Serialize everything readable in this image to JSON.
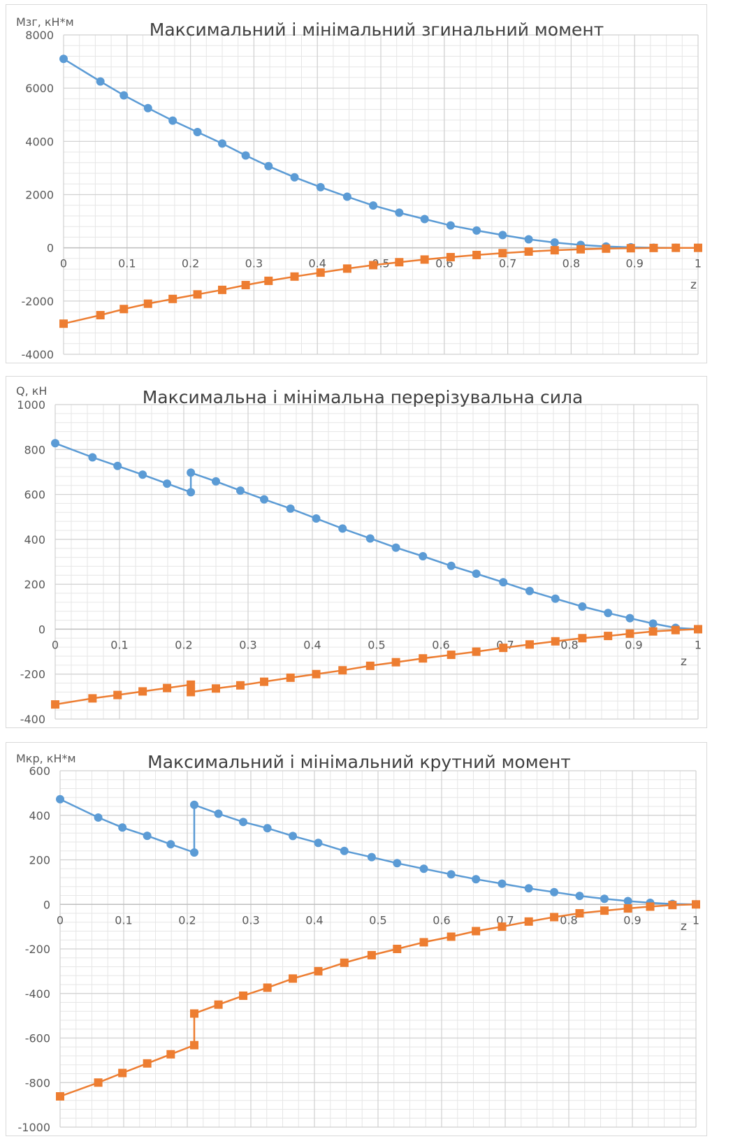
{
  "colors": {
    "max_series": "#5b9bd5",
    "min_series": "#ed7d31",
    "grid_major": "#d0d0d0",
    "grid_minor": "#e6e6e6",
    "axis_text": "#595959",
    "title_text": "#404040"
  },
  "chart_data": [
    {
      "type": "line",
      "title": "Максимальний і мінімальний згинальний момент",
      "ylabel": "Мзг, кН*м",
      "xlabel": "z",
      "xlim": [
        0,
        1
      ],
      "ylim": [
        -4000,
        8000
      ],
      "yticks": [
        "8000",
        "6000",
        "4000",
        "2000",
        "0",
        "-2000",
        "-4000"
      ],
      "ytick_values": [
        8000,
        6000,
        4000,
        2000,
        0,
        -2000,
        -4000
      ],
      "xticks": [
        "0",
        "0.1",
        "0.2",
        "0.3",
        "0.4",
        "0.5",
        "0.6",
        "0.7",
        "0.8",
        "0.9",
        "1"
      ],
      "xtick_values": [
        0,
        0.1,
        0.2,
        0.3,
        0.4,
        0.5,
        0.6,
        0.7,
        0.8,
        0.9,
        1
      ],
      "series": [
        {
          "marker": "circle",
          "x": [
            0,
            0.058,
            0.095,
            0.133,
            0.172,
            0.211,
            0.25,
            0.287,
            0.323,
            0.364,
            0.405,
            0.447,
            0.488,
            0.529,
            0.569,
            0.61,
            0.651,
            0.692,
            0.733,
            0.774,
            0.815,
            0.855,
            0.894,
            0.93,
            0.965,
            1
          ],
          "y": [
            7100,
            6250,
            5730,
            5250,
            4780,
            4350,
            3920,
            3470,
            3070,
            2650,
            2280,
            1920,
            1590,
            1320,
            1080,
            840,
            650,
            480,
            320,
            200,
            110,
            50,
            20,
            5,
            0,
            0
          ]
        },
        {
          "marker": "square",
          "x": [
            0,
            0.058,
            0.095,
            0.133,
            0.172,
            0.211,
            0.25,
            0.287,
            0.323,
            0.364,
            0.405,
            0.447,
            0.488,
            0.529,
            0.569,
            0.61,
            0.651,
            0.692,
            0.733,
            0.774,
            0.815,
            0.855,
            0.894,
            0.93,
            0.965,
            1
          ],
          "y": [
            -2850,
            -2530,
            -2300,
            -2100,
            -1920,
            -1750,
            -1580,
            -1400,
            -1240,
            -1080,
            -930,
            -780,
            -650,
            -540,
            -440,
            -350,
            -270,
            -200,
            -140,
            -90,
            -55,
            -30,
            -15,
            -5,
            0,
            0
          ]
        }
      ]
    },
    {
      "type": "line",
      "title": "Максимальна і мінімальна перерізувальна сила",
      "ylabel": "Q, кН",
      "xlabel": "z",
      "xlim": [
        0,
        1
      ],
      "ylim": [
        -400,
        1000
      ],
      "yticks": [
        "1000",
        "800",
        "600",
        "400",
        "200",
        "0",
        "-200",
        "-400"
      ],
      "ytick_values": [
        1000,
        800,
        600,
        400,
        200,
        0,
        -200,
        -400
      ],
      "xticks": [
        "0",
        "0.1",
        "0.2",
        "0.3",
        "0.4",
        "0.5",
        "0.6",
        "0.7",
        "0.8",
        "0.9",
        "1"
      ],
      "xtick_values": [
        0,
        0.1,
        0.2,
        0.3,
        0.4,
        0.5,
        0.6,
        0.7,
        0.8,
        0.9,
        1
      ],
      "series": [
        {
          "marker": "circle",
          "x": [
            0,
            0.058,
            0.097,
            0.136,
            0.174,
            0.211,
            0.211,
            0.25,
            0.288,
            0.325,
            0.366,
            0.406,
            0.447,
            0.49,
            0.53,
            0.572,
            0.616,
            0.655,
            0.697,
            0.738,
            0.778,
            0.82,
            0.86,
            0.894,
            0.93,
            0.965,
            1
          ],
          "y": [
            828,
            765,
            727,
            688,
            648,
            610,
            697,
            658,
            617,
            578,
            537,
            493,
            448,
            404,
            363,
            325,
            282,
            247,
            209,
            170,
            136,
            101,
            72,
            49,
            25,
            6,
            0
          ]
        },
        {
          "marker": "square",
          "x": [
            0,
            0.058,
            0.097,
            0.136,
            0.174,
            0.211,
            0.211,
            0.25,
            0.288,
            0.325,
            0.366,
            0.406,
            0.447,
            0.49,
            0.53,
            0.572,
            0.616,
            0.655,
            0.697,
            0.738,
            0.778,
            0.82,
            0.86,
            0.894,
            0.93,
            0.965,
            1
          ],
          "y": [
            -335,
            -308,
            -293,
            -277,
            -262,
            -247,
            -280,
            -264,
            -250,
            -234,
            -216,
            -200,
            -183,
            -163,
            -147,
            -130,
            -114,
            -100,
            -83,
            -68,
            -54,
            -40,
            -30,
            -20,
            -10,
            -4,
            0
          ]
        }
      ]
    },
    {
      "type": "line",
      "title": "Максимальний і мінімальний крутний момент",
      "ylabel": "Мкр, кН*м",
      "xlabel": "z",
      "xlim": [
        0,
        1
      ],
      "ylim": [
        -1000,
        600
      ],
      "yticks": [
        "600",
        "400",
        "200",
        "0",
        "-200",
        "-400",
        "-600",
        "-800",
        "-1000"
      ],
      "ytick_values": [
        600,
        400,
        200,
        0,
        -200,
        -400,
        -600,
        -800,
        -1000
      ],
      "xticks": [
        "0",
        "0.1",
        "0.2",
        "0.3",
        "0.4",
        "0.5",
        "0.6",
        "0.7",
        "0.8",
        "0.9",
        "1"
      ],
      "xtick_values": [
        0,
        0.1,
        0.2,
        0.3,
        0.4,
        0.5,
        0.6,
        0.7,
        0.8,
        0.9,
        1
      ],
      "series": [
        {
          "marker": "circle",
          "x": [
            0,
            0.06,
            0.098,
            0.137,
            0.174,
            0.211,
            0.211,
            0.249,
            0.288,
            0.326,
            0.366,
            0.406,
            0.447,
            0.49,
            0.53,
            0.572,
            0.615,
            0.654,
            0.695,
            0.737,
            0.777,
            0.817,
            0.856,
            0.893,
            0.928,
            0.963,
            1
          ],
          "y": [
            472,
            390,
            345,
            308,
            270,
            233,
            447,
            407,
            370,
            342,
            307,
            276,
            240,
            212,
            185,
            160,
            135,
            113,
            93,
            72,
            55,
            38,
            25,
            15,
            7,
            2,
            0
          ]
        },
        {
          "marker": "square",
          "x": [
            0,
            0.06,
            0.098,
            0.137,
            0.174,
            0.211,
            0.211,
            0.249,
            0.288,
            0.326,
            0.366,
            0.406,
            0.447,
            0.49,
            0.53,
            0.572,
            0.615,
            0.654,
            0.695,
            0.737,
            0.777,
            0.817,
            0.856,
            0.893,
            0.928,
            0.963,
            1
          ],
          "y": [
            -862,
            -800,
            -757,
            -714,
            -673,
            -632,
            -490,
            -450,
            -410,
            -374,
            -333,
            -300,
            -262,
            -228,
            -200,
            -170,
            -145,
            -120,
            -100,
            -77,
            -57,
            -40,
            -28,
            -18,
            -10,
            -3,
            0
          ]
        }
      ]
    }
  ]
}
